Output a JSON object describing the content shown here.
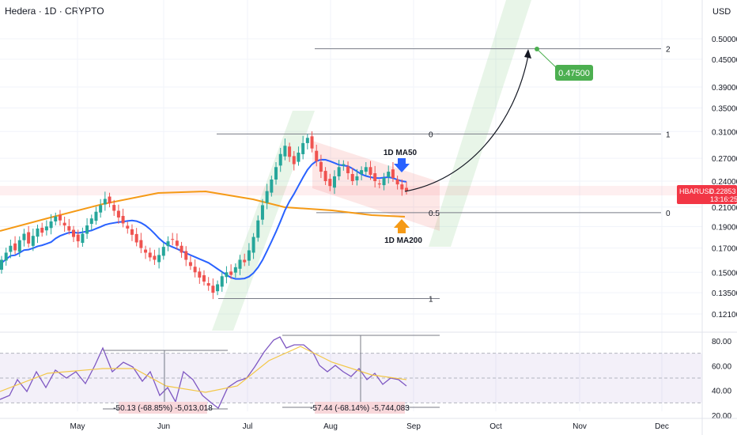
{
  "header": {
    "title": "Hedera · 1D · CRYPTO",
    "currency": "USD"
  },
  "colors": {
    "up": "#26a69a",
    "down": "#ef5350",
    "ma50": "#2962ff",
    "ma200": "#f59a16",
    "rsi": "#7e57c2",
    "rsi_ma": "#f3c746",
    "target": "#4caf50",
    "price_tag": "#f23645"
  },
  "chart_data": {
    "type": "candlestick",
    "symbol": "HBARUSD",
    "timeframe": "1D",
    "y_scale": "log",
    "y_ticks": [
      "0.50000",
      "0.45000",
      "0.39000",
      "0.35000",
      "0.31000",
      "0.27000",
      "0.24000",
      "0.21000",
      "0.19000",
      "0.17000",
      "0.15000",
      "0.13500",
      "0.12100"
    ],
    "x_ticks": [
      "May",
      "Jun",
      "Jul",
      "Aug",
      "Sep",
      "Oct",
      "Nov",
      "Dec"
    ],
    "last_price": {
      "label": "HBARUSD",
      "value": "0.22853",
      "countdown": "13:16:25"
    },
    "price_series_close": [
      0.16,
      0.166,
      0.172,
      0.168,
      0.177,
      0.183,
      0.174,
      0.181,
      0.188,
      0.184,
      0.19,
      0.195,
      0.2,
      0.196,
      0.191,
      0.186,
      0.18,
      0.176,
      0.183,
      0.191,
      0.198,
      0.205,
      0.212,
      0.219,
      0.214,
      0.206,
      0.199,
      0.193,
      0.188,
      0.182,
      0.175,
      0.17,
      0.166,
      0.162,
      0.16,
      0.164,
      0.171,
      0.176,
      0.178,
      0.172,
      0.166,
      0.16,
      0.155,
      0.15,
      0.146,
      0.143,
      0.14,
      0.135,
      0.141,
      0.147,
      0.15,
      0.148,
      0.154,
      0.16,
      0.158,
      0.168,
      0.18,
      0.196,
      0.212,
      0.228,
      0.242,
      0.258,
      0.276,
      0.288,
      0.272,
      0.262,
      0.278,
      0.292,
      0.3,
      0.284,
      0.266,
      0.252,
      0.24,
      0.234,
      0.246,
      0.258,
      0.262,
      0.25,
      0.24,
      0.246,
      0.254,
      0.258,
      0.248,
      0.24,
      0.236,
      0.244,
      0.252,
      0.244,
      0.236,
      0.23,
      0.22853
    ],
    "ma50": {
      "label": "1D MA50"
    },
    "ma200": {
      "label": "1D MA200"
    },
    "fib_levels": [
      {
        "label": "0",
        "price": 0.306
      },
      {
        "label": "0.5",
        "price": 0.204
      },
      {
        "label": "1",
        "price": 0.131
      },
      {
        "label": "2",
        "price": 0.475
      },
      {
        "label": "1",
        "price": 0.306
      },
      {
        "label": "0",
        "price": 0.204
      }
    ],
    "target": {
      "value": "0.47500"
    },
    "rsi": {
      "y_ticks": [
        "80.00",
        "60.00",
        "40.00",
        "20.00"
      ],
      "measures": [
        "-50.13 (-68.85%) -5,013,018",
        "-57.44 (-68.14%) -5,744,083"
      ]
    }
  }
}
